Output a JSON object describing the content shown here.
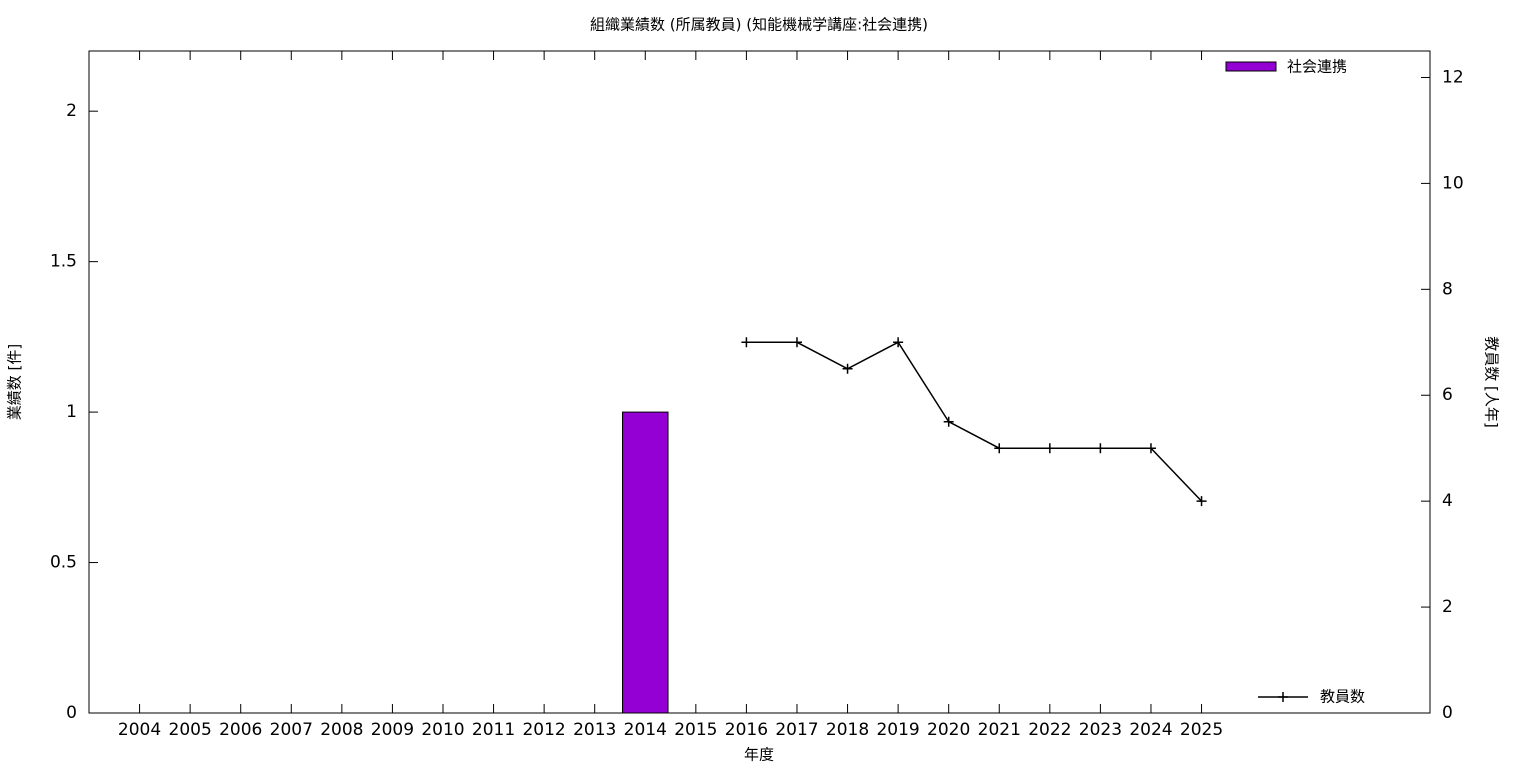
{
  "chart_data": {
    "type": "bar_line",
    "title": "組織業績数 (所属教員) (知能機械学講座:社会連携)",
    "x_label": "年度",
    "y_label": "業績数 [件]",
    "y2_label": "教員数 [人年]",
    "categories": [
      "2004",
      "2005",
      "2006",
      "2007",
      "2008",
      "2009",
      "2010",
      "2011",
      "2012",
      "2013",
      "2014",
      "2015",
      "2016",
      "2017",
      "2018",
      "2019",
      "2020",
      "2021",
      "2022",
      "2023",
      "2024",
      "2025"
    ],
    "series": [
      {
        "name": "社会連携",
        "type": "bar",
        "color": "#9400d3",
        "values": [
          0,
          0,
          0,
          0,
          0,
          0,
          0,
          0,
          0,
          0,
          1,
          0,
          0,
          0,
          0,
          0,
          0,
          0,
          0,
          0,
          0,
          0
        ]
      },
      {
        "name": "教員数",
        "type": "line",
        "axis": "y2",
        "color": "#000000",
        "values": [
          null,
          null,
          null,
          null,
          null,
          null,
          null,
          null,
          null,
          null,
          null,
          null,
          7,
          7,
          6.5,
          7,
          5.5,
          5,
          5,
          5,
          5,
          4
        ]
      }
    ],
    "ylim": [
      0,
      2.2
    ],
    "yticks": [
      0,
      0.5,
      1,
      1.5,
      2
    ],
    "y2lim": [
      0,
      12.5
    ],
    "y2ticks": [
      0,
      2,
      4,
      6,
      8,
      10,
      12
    ],
    "grid": false
  }
}
